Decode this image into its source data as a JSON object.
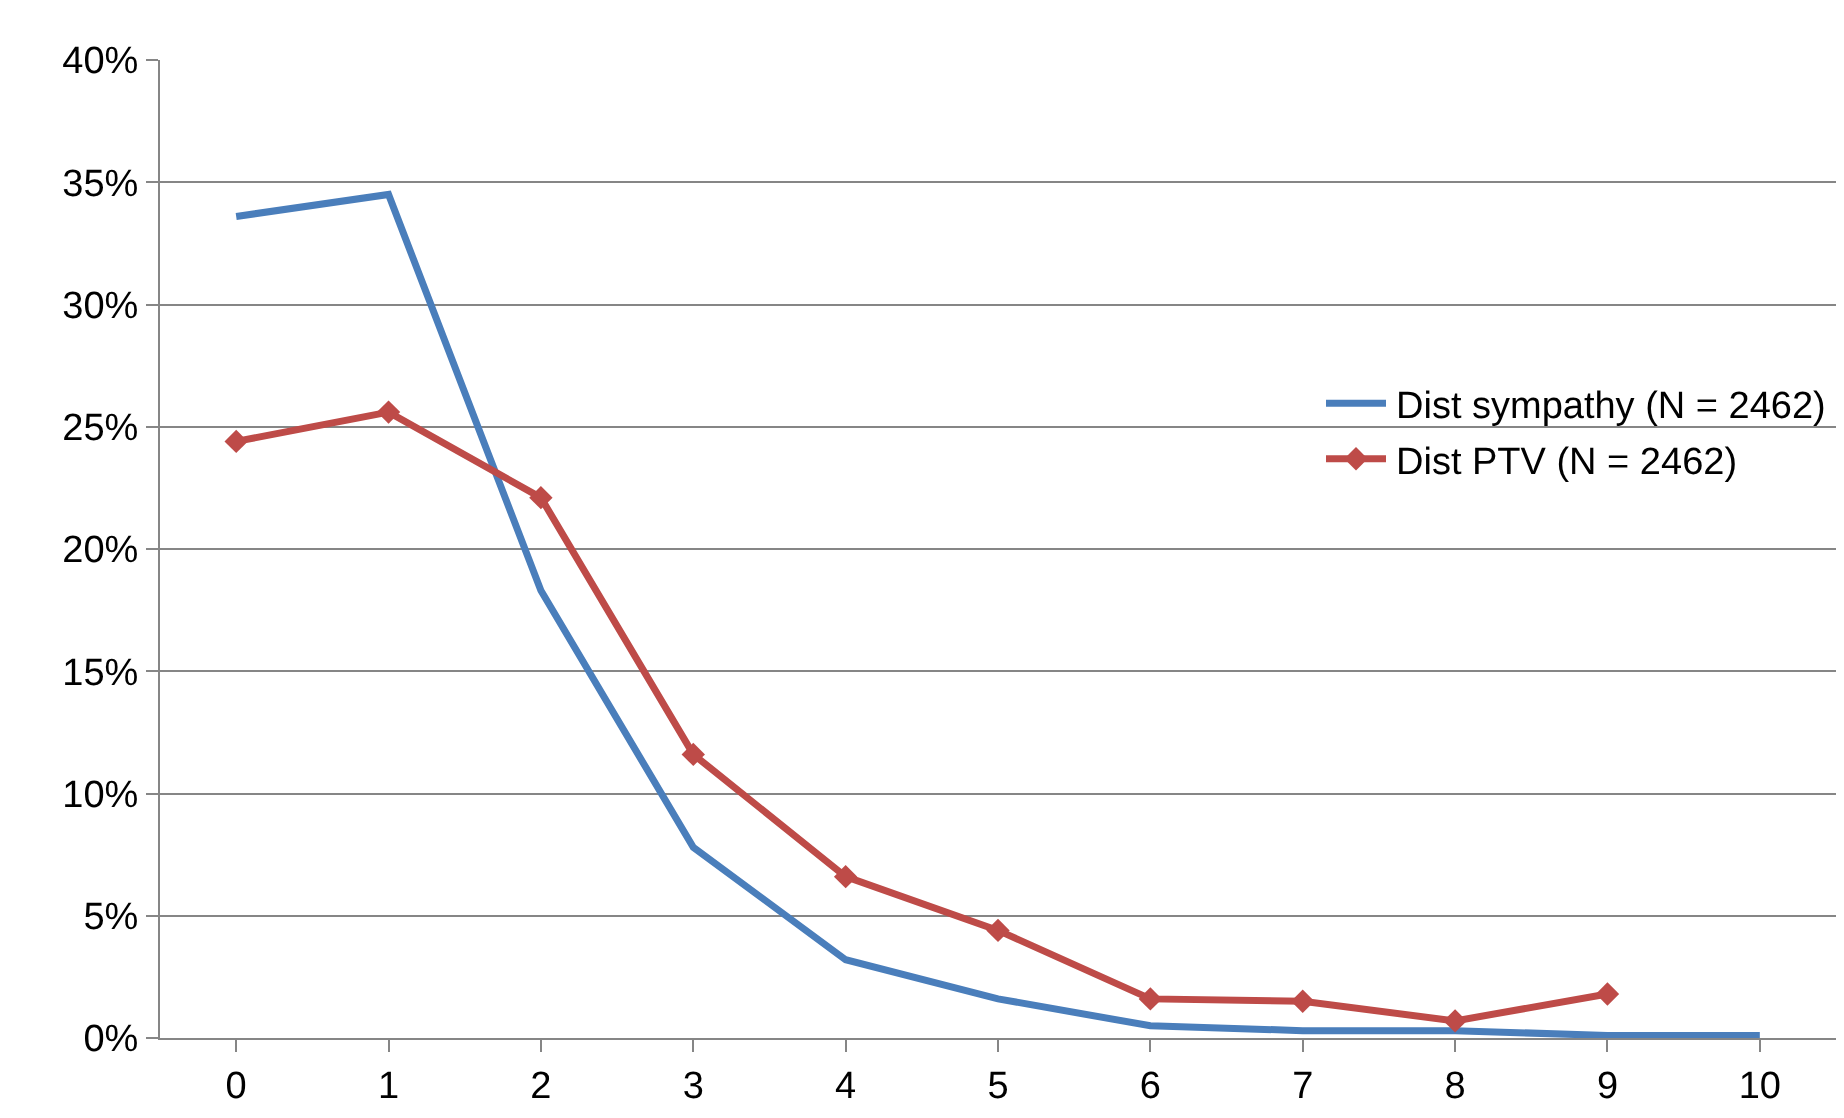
{
  "chart_data": {
    "type": "line",
    "categories": [
      "0",
      "1",
      "2",
      "3",
      "4",
      "5",
      "6",
      "7",
      "8",
      "9",
      "10"
    ],
    "series": [
      {
        "name": "Dist sympathy (N = 2462)",
        "color": "#4a7ebb",
        "marker": "none",
        "values": [
          33.6,
          34.5,
          18.3,
          7.8,
          3.2,
          1.6,
          0.5,
          0.3,
          0.3,
          0.1,
          0.1
        ]
      },
      {
        "name": "Dist PTV (N = 2462)",
        "color": "#be4b48",
        "marker": "diamond",
        "values": [
          24.4,
          25.6,
          22.1,
          11.6,
          6.6,
          4.4,
          1.6,
          1.5,
          0.7,
          1.8,
          null
        ]
      }
    ],
    "ylim": [
      0,
      40
    ],
    "yticks": [
      {
        "value": 0,
        "label": "0%"
      },
      {
        "value": 5,
        "label": "5%"
      },
      {
        "value": 10,
        "label": "10%"
      },
      {
        "value": 15,
        "label": "15%"
      },
      {
        "value": 20,
        "label": "20%"
      },
      {
        "value": 25,
        "label": "25%"
      },
      {
        "value": 30,
        "label": "30%"
      },
      {
        "value": 35,
        "label": "35%"
      },
      {
        "value": 40,
        "label": "40%"
      }
    ],
    "grid": "y",
    "legend": "right",
    "line_style": "solid"
  }
}
